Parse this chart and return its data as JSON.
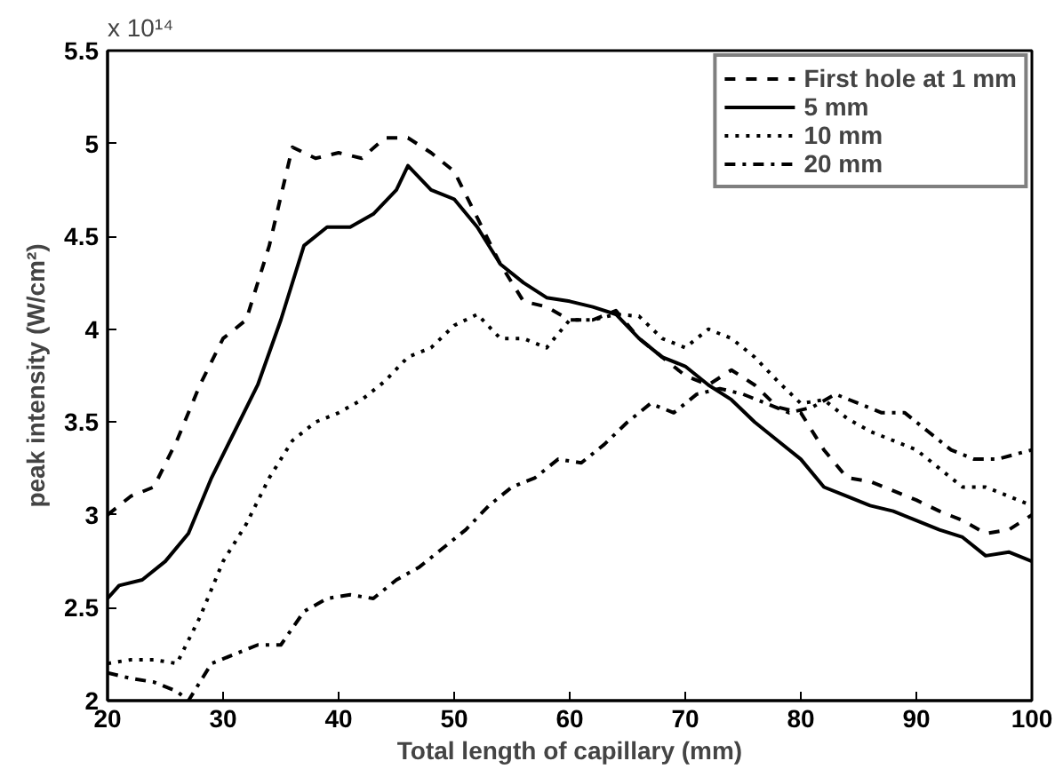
{
  "chart_data": {
    "type": "line",
    "xlabel": "Total length of capillary (mm)",
    "ylabel": "peak intensity (W/cm²)",
    "annotations": [
      "x 10¹⁴"
    ],
    "xlim": [
      20,
      100
    ],
    "ylim": [
      2,
      5.5
    ],
    "xticks": [
      20,
      30,
      40,
      50,
      60,
      70,
      80,
      90,
      100
    ],
    "yticks": [
      2,
      2.5,
      3,
      3.5,
      4,
      4.5,
      5,
      5.5
    ],
    "grid": false,
    "legend": "top right",
    "marker": "none",
    "series": [
      {
        "name": "First hole at 1 mm",
        "color": "#000000",
        "line_style": "dashed",
        "x": [
          20,
          22,
          24,
          26,
          28,
          30,
          32,
          34,
          36,
          38,
          40,
          42,
          44,
          46,
          48,
          50,
          52,
          54,
          56,
          58,
          60,
          62,
          64,
          66,
          68,
          70,
          72,
          74,
          76,
          78,
          80,
          82,
          84,
          86,
          88,
          90,
          92,
          94,
          96,
          98,
          100
        ],
        "values": [
          3.0,
          3.1,
          3.15,
          3.4,
          3.7,
          3.95,
          4.05,
          4.45,
          4.98,
          4.92,
          4.95,
          4.92,
          5.03,
          5.03,
          4.95,
          4.85,
          4.6,
          4.35,
          4.15,
          4.12,
          4.05,
          4.05,
          4.1,
          3.95,
          3.85,
          3.75,
          3.7,
          3.78,
          3.7,
          3.58,
          3.55,
          3.35,
          3.2,
          3.18,
          3.13,
          3.08,
          3.02,
          2.97,
          2.9,
          2.92,
          3.0
        ]
      },
      {
        "name": "5 mm",
        "color": "#000000",
        "line_style": "solid",
        "x": [
          20,
          21,
          23,
          25,
          27,
          29,
          31,
          33,
          35,
          37,
          39,
          41,
          43,
          45,
          46,
          48,
          50,
          52,
          54,
          56,
          58,
          60,
          62,
          64,
          66,
          68,
          70,
          72,
          74,
          76,
          78,
          80,
          82,
          84,
          86,
          88,
          90,
          92,
          94,
          96,
          98,
          100
        ],
        "values": [
          2.55,
          2.62,
          2.65,
          2.75,
          2.9,
          3.2,
          3.45,
          3.7,
          4.05,
          4.45,
          4.55,
          4.55,
          4.62,
          4.75,
          4.88,
          4.75,
          4.7,
          4.55,
          4.35,
          4.25,
          4.17,
          4.15,
          4.12,
          4.08,
          3.95,
          3.85,
          3.8,
          3.7,
          3.62,
          3.5,
          3.4,
          3.3,
          3.15,
          3.1,
          3.05,
          3.02,
          2.97,
          2.92,
          2.88,
          2.78,
          2.8,
          2.75
        ]
      },
      {
        "name": "10 mm",
        "color": "#000000",
        "line_style": "dotted",
        "x": [
          20,
          22,
          24,
          26,
          28,
          30,
          32,
          34,
          36,
          38,
          40,
          42,
          44,
          46,
          48,
          50,
          52,
          54,
          56,
          58,
          60,
          62,
          64,
          66,
          68,
          70,
          72,
          74,
          76,
          78,
          80,
          82,
          84,
          86,
          88,
          90,
          92,
          94,
          96,
          98,
          100
        ],
        "values": [
          2.2,
          2.22,
          2.22,
          2.2,
          2.45,
          2.75,
          2.95,
          3.2,
          3.4,
          3.5,
          3.55,
          3.62,
          3.72,
          3.85,
          3.9,
          4.02,
          4.08,
          3.95,
          3.95,
          3.9,
          4.05,
          4.05,
          4.08,
          4.07,
          3.95,
          3.9,
          4.0,
          3.95,
          3.85,
          3.72,
          3.6,
          3.62,
          3.52,
          3.45,
          3.4,
          3.35,
          3.25,
          3.15,
          3.15,
          3.1,
          3.05
        ]
      },
      {
        "name": "20 mm",
        "color": "#000000",
        "line_style": "dashdot",
        "x": [
          20,
          22,
          24,
          26,
          27,
          29,
          31,
          33,
          35,
          37,
          39,
          41,
          43,
          45,
          47,
          49,
          51,
          53,
          55,
          57,
          59,
          61,
          63,
          65,
          67,
          69,
          71,
          73,
          75,
          77,
          79,
          81,
          83,
          85,
          87,
          89,
          91,
          93,
          95,
          97,
          100
        ],
        "values": [
          2.15,
          2.12,
          2.1,
          2.05,
          2.0,
          2.2,
          2.25,
          2.3,
          2.3,
          2.48,
          2.55,
          2.57,
          2.55,
          2.65,
          2.72,
          2.82,
          2.92,
          3.05,
          3.15,
          3.2,
          3.3,
          3.28,
          3.38,
          3.5,
          3.6,
          3.55,
          3.65,
          3.68,
          3.65,
          3.6,
          3.55,
          3.58,
          3.65,
          3.6,
          3.55,
          3.55,
          3.45,
          3.35,
          3.3,
          3.3,
          3.35
        ]
      }
    ]
  }
}
